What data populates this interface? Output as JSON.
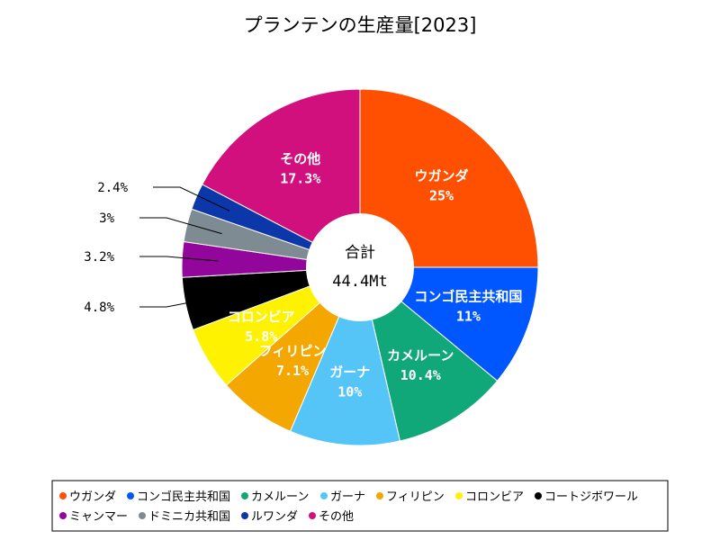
{
  "chart_data": {
    "type": "pie",
    "title": "プランテンの生産量[2023]",
    "center_label": "合計",
    "center_value": "44.4Mt",
    "slices": [
      {
        "name": "ウガンダ",
        "value": 25,
        "label": "25%",
        "color": "#ff4f00"
      },
      {
        "name": "コンゴ民主共和国",
        "value": 11,
        "label": "11%",
        "color": "#0057ff"
      },
      {
        "name": "カメルーン",
        "value": 10.4,
        "label": "10.4%",
        "color": "#10a779"
      },
      {
        "name": "ガーナ",
        "value": 10,
        "label": "10%",
        "color": "#55c5f8"
      },
      {
        "name": "フィリピン",
        "value": 7.1,
        "label": "7.1%",
        "color": "#f4a700"
      },
      {
        "name": "コロンビア",
        "value": 5.8,
        "label": "5.8%",
        "color": "#fff200"
      },
      {
        "name": "コートジボワール",
        "value": 4.8,
        "label": "4.8%",
        "color": "#000000"
      },
      {
        "name": "ミャンマー",
        "value": 3.2,
        "label": "3.2%",
        "color": "#92069b"
      },
      {
        "name": "ドミニカ共和国",
        "value": 3,
        "label": "3%",
        "color": "#7f8b93"
      },
      {
        "name": "ルワンダ",
        "value": 2.4,
        "label": "2.4%",
        "color": "#0b37a8"
      },
      {
        "name": "その他",
        "value": 17.3,
        "label": "17.3%",
        "color": "#d1107d"
      }
    ]
  }
}
